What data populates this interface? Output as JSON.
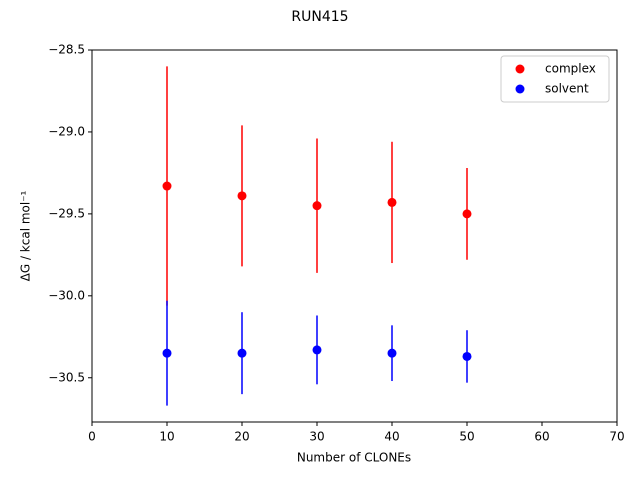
{
  "chart_data": {
    "type": "errorbar-scatter",
    "title": "RUN415",
    "x_label": "Number of CLONEs",
    "y_label": "ΔG / kcal mol⁻¹",
    "x": [
      10,
      20,
      30,
      40,
      50
    ],
    "series": [
      {
        "name": "complex",
        "color": "#ff0000",
        "values": [
          -29.33,
          -29.39,
          -29.45,
          -29.43,
          -29.5
        ],
        "errors": [
          0.73,
          0.43,
          0.41,
          0.37,
          0.28
        ]
      },
      {
        "name": "solvent",
        "color": "#0000ff",
        "values": [
          -30.35,
          -30.35,
          -30.33,
          -30.35,
          -30.37
        ],
        "errors": [
          0.32,
          0.25,
          0.21,
          0.17,
          0.16
        ]
      }
    ],
    "xlim": [
      0,
      70
    ],
    "xticks": [
      0,
      10,
      20,
      30,
      40,
      50,
      60,
      70
    ],
    "ylim": [
      -30.77,
      -28.5
    ],
    "yticks": [
      {
        "value": -30.5,
        "label": "−30.5"
      },
      {
        "value": -30.0,
        "label": "−30.0"
      },
      {
        "value": -29.5,
        "label": "−29.5"
      },
      {
        "value": -29.0,
        "label": "−29.0"
      },
      {
        "value": -28.5,
        "label": "−28.5"
      }
    ],
    "legend": "upper right"
  }
}
